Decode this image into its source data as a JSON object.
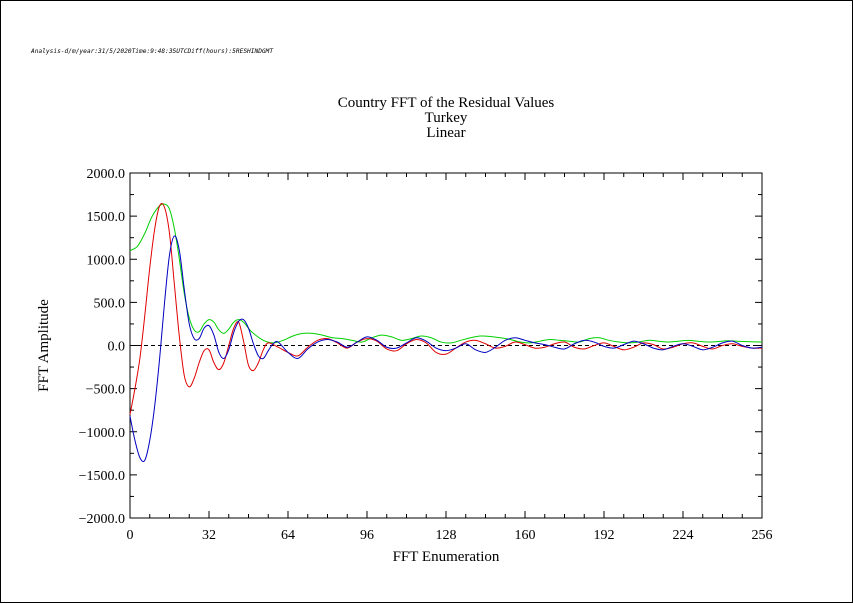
{
  "header": {
    "meta_line": "Analysis-d/m/year:31/5/2020Time:9:48:35UTCDiff(hours):5RESHINDGMT"
  },
  "chart_data": {
    "type": "line",
    "title": "Country FFT of the Residual Values",
    "subtitle_lines": [
      "Turkey",
      "Linear"
    ],
    "xlabel": "FFT Enumeration",
    "ylabel": "FFT Amplitude",
    "xlim": [
      0,
      256
    ],
    "ylim": [
      -2000,
      2000
    ],
    "xticks": [
      0,
      32,
      64,
      96,
      128,
      160,
      192,
      224,
      256
    ],
    "xtick_labels": [
      "0",
      "32",
      "64",
      "96",
      "128",
      "160",
      "192",
      "224",
      "256"
    ],
    "yticks": [
      -2000,
      -1500,
      -1000,
      -500,
      0,
      500,
      1000,
      1500,
      2000
    ],
    "ytick_labels": [
      "−2000.0",
      "−1500.0",
      "−1000.0",
      "−500.0",
      "0.0",
      "500.0",
      "1000.0",
      "1500.0",
      "2000.0"
    ],
    "zero_line": "dashed",
    "grid": false,
    "colors": {
      "red": "#e00000",
      "blue": "#0000c0",
      "green": "#00d000"
    },
    "series": [
      {
        "color": "#00d000",
        "x": [
          0,
          3,
          6,
          9,
          12,
          14,
          16,
          18,
          20,
          22,
          24,
          26,
          28,
          30,
          32,
          34,
          36,
          38,
          40,
          42,
          44,
          46,
          48,
          50,
          54,
          58,
          62,
          66,
          70,
          74,
          78,
          82,
          86,
          90,
          94,
          98,
          102,
          106,
          110,
          114,
          118,
          122,
          126,
          130,
          134,
          138,
          142,
          146,
          150,
          154,
          158,
          162,
          166,
          170,
          174,
          178,
          182,
          186,
          190,
          194,
          198,
          202,
          206,
          210,
          214,
          218,
          222,
          226,
          230,
          234,
          238,
          242,
          246,
          250,
          256
        ],
        "y": [
          1100,
          1150,
          1300,
          1500,
          1620,
          1640,
          1580,
          1350,
          1000,
          600,
          320,
          180,
          160,
          250,
          300,
          270,
          180,
          140,
          190,
          270,
          300,
          270,
          200,
          140,
          60,
          30,
          60,
          110,
          140,
          140,
          120,
          90,
          80,
          60,
          40,
          90,
          120,
          100,
          60,
          80,
          110,
          90,
          40,
          30,
          60,
          90,
          110,
          105,
          90,
          70,
          40,
          30,
          50,
          70,
          60,
          50,
          40,
          80,
          90,
          60,
          40,
          30,
          40,
          60,
          50,
          40,
          50,
          60,
          50,
          40,
          45,
          55,
          50,
          45,
          40
        ]
      },
      {
        "color": "#e00000",
        "x": [
          0,
          2,
          4,
          6,
          8,
          10,
          12,
          14,
          16,
          18,
          20,
          22,
          24,
          26,
          28,
          30,
          32,
          34,
          36,
          38,
          40,
          42,
          44,
          46,
          48,
          50,
          52,
          54,
          56,
          60,
          64,
          68,
          72,
          76,
          80,
          84,
          88,
          92,
          96,
          100,
          104,
          108,
          112,
          116,
          120,
          124,
          128,
          132,
          136,
          140,
          144,
          148,
          152,
          156,
          160,
          164,
          168,
          172,
          176,
          180,
          184,
          188,
          192,
          196,
          200,
          204,
          208,
          212,
          216,
          220,
          224,
          228,
          232,
          236,
          240,
          244,
          248,
          252,
          256
        ],
        "y": [
          -800,
          -500,
          -150,
          350,
          900,
          1350,
          1620,
          1600,
          1300,
          700,
          100,
          -350,
          -480,
          -380,
          -200,
          -60,
          -50,
          -200,
          -280,
          -200,
          0,
          200,
          270,
          50,
          -230,
          -290,
          -200,
          -50,
          30,
          -20,
          -80,
          -120,
          -20,
          60,
          80,
          30,
          -30,
          40,
          80,
          50,
          -40,
          -60,
          20,
          70,
          30,
          -80,
          -100,
          -30,
          40,
          60,
          20,
          -30,
          -10,
          40,
          10,
          -30,
          -20,
          20,
          40,
          -20,
          -40,
          0,
          30,
          -10,
          -50,
          -20,
          30,
          10,
          -40,
          -20,
          20,
          30,
          -10,
          -40,
          0,
          20,
          -10,
          -30,
          -30
        ]
      },
      {
        "color": "#0000c0",
        "x": [
          0,
          2,
          4,
          6,
          8,
          10,
          12,
          14,
          16,
          18,
          20,
          22,
          24,
          26,
          28,
          30,
          32,
          34,
          36,
          38,
          40,
          42,
          44,
          46,
          48,
          50,
          52,
          54,
          56,
          58,
          60,
          64,
          68,
          72,
          76,
          80,
          84,
          88,
          92,
          96,
          100,
          104,
          108,
          112,
          116,
          120,
          124,
          128,
          132,
          136,
          140,
          144,
          148,
          152,
          156,
          160,
          164,
          168,
          172,
          176,
          180,
          184,
          188,
          192,
          196,
          200,
          204,
          208,
          212,
          216,
          220,
          224,
          228,
          232,
          236,
          240,
          244,
          248,
          252,
          256
        ],
        "y": [
          -820,
          -1100,
          -1300,
          -1330,
          -1100,
          -700,
          -150,
          500,
          1050,
          1270,
          1100,
          650,
          250,
          80,
          80,
          200,
          230,
          120,
          -80,
          -150,
          -50,
          150,
          280,
          300,
          200,
          20,
          -120,
          -150,
          -60,
          20,
          40,
          -80,
          -150,
          -40,
          40,
          70,
          40,
          -20,
          40,
          100,
          60,
          -20,
          -30,
          30,
          90,
          50,
          -30,
          -60,
          -30,
          20,
          -50,
          -80,
          -20,
          60,
          90,
          60,
          30,
          10,
          -20,
          -40,
          20,
          60,
          40,
          -10,
          -30,
          10,
          50,
          20,
          -30,
          -50,
          -10,
          20,
          -10,
          -50,
          -20,
          30,
          50,
          0,
          -30,
          -20
        ]
      }
    ]
  }
}
